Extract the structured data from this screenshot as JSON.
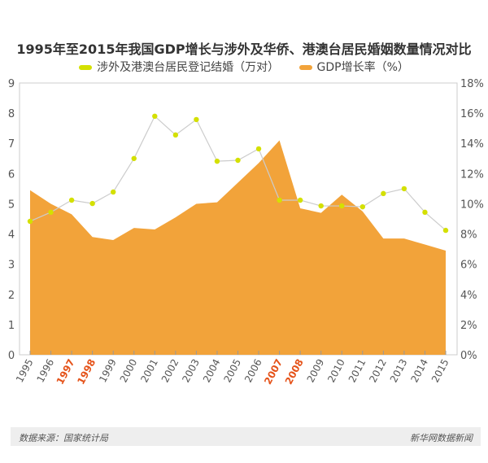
{
  "chart_data": {
    "type": "line+area",
    "title": "1995年至2015年我国GDP增长与涉外及华侨、港澳台居民婚姻数量情况对比",
    "categories": [
      "1995",
      "1996",
      "1997",
      "1998",
      "1999",
      "2000",
      "2001",
      "2002",
      "2003",
      "2004",
      "2005",
      "2006",
      "2007",
      "2008",
      "2009",
      "2010",
      "2011",
      "2012",
      "2013",
      "2014",
      "2015"
    ],
    "highlight_categories": [
      "1997",
      "1998",
      "2007",
      "2008"
    ],
    "series": [
      {
        "name": "涉外及港澳台居民登记结婚（万对）",
        "type": "line",
        "axis": "left",
        "color": "#d4e000",
        "values": [
          4.42,
          4.72,
          5.12,
          5.01,
          5.39,
          6.5,
          7.9,
          7.28,
          7.79,
          6.41,
          6.44,
          6.82,
          5.12,
          5.12,
          4.93,
          4.93,
          4.9,
          5.34,
          5.5,
          4.72,
          4.12
        ]
      },
      {
        "name": "GDP增长率（%）",
        "type": "area",
        "axis": "right",
        "color": "#f2a33a",
        "values": [
          10.9,
          10.0,
          9.3,
          7.8,
          7.6,
          8.4,
          8.3,
          9.1,
          10.0,
          10.1,
          11.4,
          12.7,
          14.2,
          9.7,
          9.4,
          10.6,
          9.5,
          7.7,
          7.7,
          7.3,
          6.9
        ]
      }
    ],
    "ylim_left": [
      0,
      9
    ],
    "yticks_left": [
      "0",
      "1",
      "2",
      "3",
      "4",
      "5",
      "6",
      "7",
      "8",
      "9"
    ],
    "ylim_right": [
      0,
      18
    ],
    "yticks_right": [
      "0%",
      "2%",
      "4%",
      "6%",
      "8%",
      "10%",
      "12%",
      "14%",
      "16%",
      "18%"
    ],
    "highlight_color": "#e5531a"
  },
  "footer": {
    "source": "数据来源：国家统计局",
    "brand": "新华网数据新闻"
  }
}
